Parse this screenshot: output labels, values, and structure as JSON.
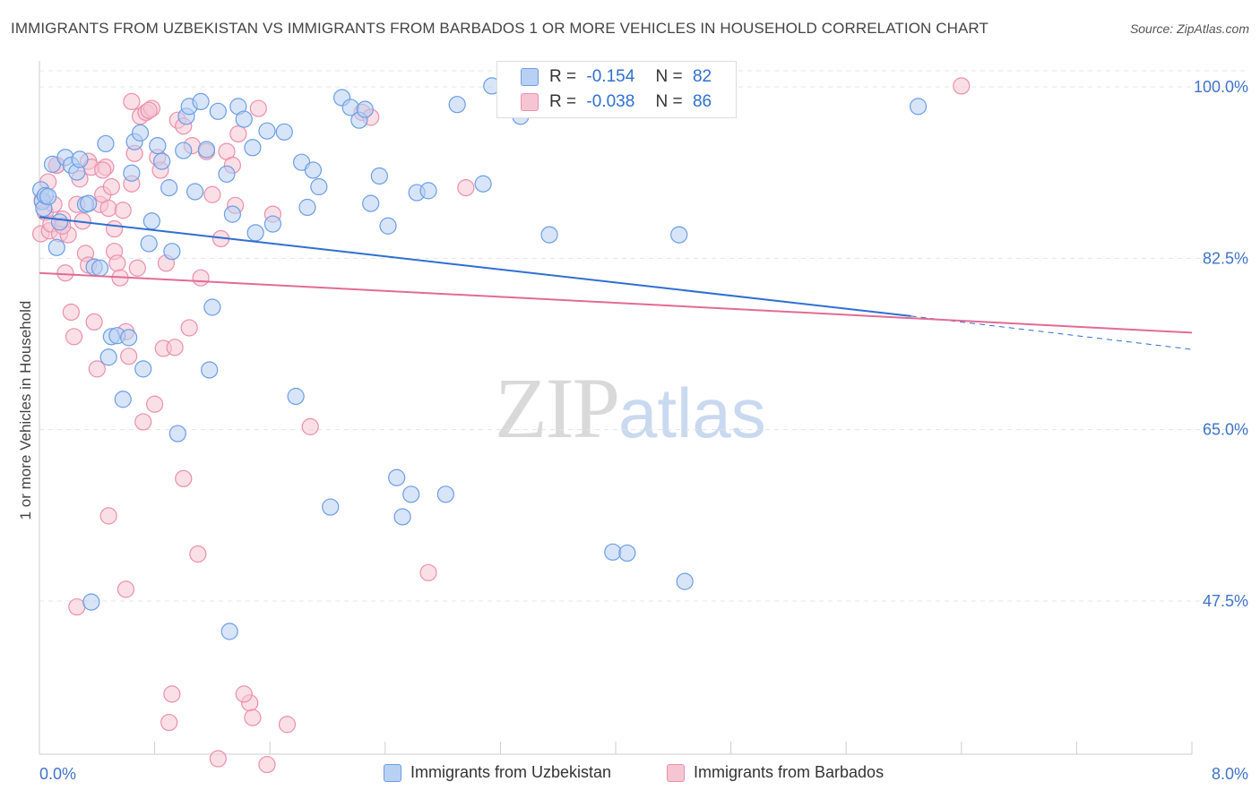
{
  "title": "IMMIGRANTS FROM UZBEKISTAN VS IMMIGRANTS FROM BARBADOS 1 OR MORE VEHICLES IN HOUSEHOLD CORRELATION CHART",
  "source": "Source: ZipAtlas.com",
  "watermark": {
    "zip": "ZIP",
    "atlas": "atlas"
  },
  "legend": {
    "r_label": "R =",
    "n_label": "N =",
    "uzbekistan": {
      "r": "-0.154",
      "n": "82"
    },
    "barbados": {
      "r": "-0.038",
      "n": "86"
    }
  },
  "colors": {
    "blue_fill": "#b8d0f2",
    "blue_stroke": "#6a9ee6",
    "blue_line": "#2f6fd1",
    "pink_fill": "#f6c5d4",
    "pink_stroke": "#ec8fab",
    "pink_line": "#e36b95",
    "tick_label": "#3f73c9"
  },
  "chart_data": {
    "type": "scatter",
    "title": "IMMIGRANTS FROM UZBEKISTAN VS IMMIGRANTS FROM BARBADOS 1 OR MORE VEHICLES IN HOUSEHOLD CORRELATION CHART",
    "xlabel": "",
    "ylabel": "1 or more Vehicles in Household",
    "xlim": [
      0,
      8
    ],
    "ylim": [
      31,
      102
    ],
    "x_tick_labels": [
      "0.0%",
      "8.0%"
    ],
    "y_ticks": [
      100,
      82.5,
      65,
      47.5
    ],
    "y_tick_labels": [
      "100.0%",
      "82.5%",
      "65.0%",
      "47.5%"
    ],
    "grid": true,
    "legend_position": "top-center",
    "series": [
      {
        "name": "Immigrants from Uzbekistan",
        "color": "#6a9ee6",
        "trend": {
          "x0": 0.0,
          "y0": 86.7,
          "x1": 6.05,
          "y1": 76.6,
          "dashed_to_x": 8.0,
          "dashed_to_y": 73.2
        },
        "points": [
          [
            0.01,
            89.5
          ],
          [
            0.02,
            88.3
          ],
          [
            0.03,
            87.6
          ],
          [
            0.04,
            88.9
          ],
          [
            0.06,
            88.8
          ],
          [
            0.09,
            92.1
          ],
          [
            0.12,
            83.6
          ],
          [
            0.14,
            86.2
          ],
          [
            0.18,
            92.8
          ],
          [
            0.22,
            92.0
          ],
          [
            0.26,
            91.3
          ],
          [
            0.28,
            92.6
          ],
          [
            0.32,
            88.0
          ],
          [
            0.34,
            88.1
          ],
          [
            0.38,
            81.6
          ],
          [
            0.42,
            81.5
          ],
          [
            0.46,
            94.2
          ],
          [
            0.48,
            72.4
          ],
          [
            0.5,
            74.5
          ],
          [
            0.54,
            74.6
          ],
          [
            0.58,
            68.1
          ],
          [
            0.62,
            74.4
          ],
          [
            0.64,
            91.2
          ],
          [
            0.66,
            94.4
          ],
          [
            0.7,
            95.3
          ],
          [
            0.72,
            71.2
          ],
          [
            0.76,
            84.0
          ],
          [
            0.78,
            86.3
          ],
          [
            0.82,
            94.0
          ],
          [
            0.85,
            92.4
          ],
          [
            0.9,
            89.7
          ],
          [
            0.92,
            83.2
          ],
          [
            0.96,
            64.6
          ],
          [
            1.0,
            93.5
          ],
          [
            1.02,
            97.0
          ],
          [
            1.04,
            98.0
          ],
          [
            1.08,
            89.3
          ],
          [
            1.12,
            98.5
          ],
          [
            1.16,
            93.6
          ],
          [
            1.18,
            71.1
          ],
          [
            1.2,
            77.5
          ],
          [
            1.24,
            97.5
          ],
          [
            1.3,
            91.1
          ],
          [
            1.34,
            87.0
          ],
          [
            1.38,
            98.0
          ],
          [
            1.42,
            96.7
          ],
          [
            1.48,
            93.8
          ],
          [
            1.5,
            85.1
          ],
          [
            1.58,
            95.5
          ],
          [
            1.62,
            86.0
          ],
          [
            1.7,
            95.4
          ],
          [
            1.78,
            68.4
          ],
          [
            1.82,
            92.3
          ],
          [
            1.86,
            87.7
          ],
          [
            1.9,
            91.5
          ],
          [
            1.94,
            89.8
          ],
          [
            2.02,
            57.1
          ],
          [
            2.1,
            98.9
          ],
          [
            2.16,
            97.9
          ],
          [
            2.22,
            96.6
          ],
          [
            2.26,
            97.7
          ],
          [
            2.3,
            88.1
          ],
          [
            2.36,
            90.9
          ],
          [
            2.42,
            85.8
          ],
          [
            2.48,
            60.1
          ],
          [
            2.52,
            56.1
          ],
          [
            2.58,
            58.4
          ],
          [
            2.62,
            89.2
          ],
          [
            2.7,
            89.4
          ],
          [
            2.82,
            58.4
          ],
          [
            2.9,
            98.2
          ],
          [
            3.08,
            90.1
          ],
          [
            3.14,
            100.1
          ],
          [
            3.3,
            100.1
          ],
          [
            3.34,
            97.0
          ],
          [
            3.54,
            84.9
          ],
          [
            3.98,
            52.5
          ],
          [
            4.08,
            52.4
          ],
          [
            4.44,
            84.9
          ],
          [
            4.48,
            49.5
          ],
          [
            6.1,
            98.0
          ],
          [
            0.36,
            47.4
          ],
          [
            1.32,
            44.4
          ]
        ]
      },
      {
        "name": "Immigrants from Barbados",
        "color": "#ec8fab",
        "trend": {
          "x0": 0.0,
          "y0": 81.0,
          "x1": 8.0,
          "y1": 74.9
        },
        "points": [
          [
            0.01,
            85.0
          ],
          [
            0.02,
            88.5
          ],
          [
            0.04,
            87.2
          ],
          [
            0.06,
            90.3
          ],
          [
            0.07,
            85.3
          ],
          [
            0.08,
            86.0
          ],
          [
            0.1,
            88.0
          ],
          [
            0.12,
            92.0
          ],
          [
            0.14,
            85.0
          ],
          [
            0.16,
            86.5
          ],
          [
            0.18,
            81.0
          ],
          [
            0.22,
            77.0
          ],
          [
            0.24,
            74.5
          ],
          [
            0.26,
            88.0
          ],
          [
            0.3,
            86.3
          ],
          [
            0.32,
            83.0
          ],
          [
            0.34,
            92.4
          ],
          [
            0.36,
            91.8
          ],
          [
            0.38,
            76.0
          ],
          [
            0.4,
            71.2
          ],
          [
            0.42,
            88.0
          ],
          [
            0.44,
            89.0
          ],
          [
            0.46,
            91.8
          ],
          [
            0.48,
            87.6
          ],
          [
            0.5,
            89.8
          ],
          [
            0.52,
            83.2
          ],
          [
            0.54,
            82.0
          ],
          [
            0.56,
            80.5
          ],
          [
            0.58,
            87.4
          ],
          [
            0.6,
            75.0
          ],
          [
            0.62,
            72.5
          ],
          [
            0.64,
            98.5
          ],
          [
            0.66,
            93.2
          ],
          [
            0.68,
            81.5
          ],
          [
            0.7,
            97.0
          ],
          [
            0.72,
            65.8
          ],
          [
            0.74,
            97.4
          ],
          [
            0.78,
            97.8
          ],
          [
            0.8,
            67.6
          ],
          [
            0.82,
            92.8
          ],
          [
            0.84,
            91.5
          ],
          [
            0.86,
            73.3
          ],
          [
            0.88,
            82.0
          ],
          [
            0.9,
            35.1
          ],
          [
            0.94,
            73.4
          ],
          [
            0.96,
            96.6
          ],
          [
            1.0,
            60.0
          ],
          [
            1.04,
            75.4
          ],
          [
            1.06,
            94.0
          ],
          [
            1.1,
            52.3
          ],
          [
            1.12,
            80.5
          ],
          [
            1.16,
            93.4
          ],
          [
            1.2,
            89.0
          ],
          [
            1.24,
            31.4
          ],
          [
            1.26,
            84.5
          ],
          [
            1.3,
            93.4
          ],
          [
            1.34,
            92.0
          ],
          [
            1.38,
            95.2
          ],
          [
            1.46,
            37.1
          ],
          [
            1.48,
            35.6
          ],
          [
            1.52,
            97.8
          ],
          [
            1.58,
            30.8
          ],
          [
            1.62,
            87.0
          ],
          [
            1.72,
            34.9
          ],
          [
            1.88,
            65.3
          ],
          [
            2.24,
            97.4
          ],
          [
            2.3,
            96.9
          ],
          [
            2.7,
            50.4
          ],
          [
            2.96,
            89.7
          ],
          [
            6.4,
            100.1
          ],
          [
            0.48,
            56.2
          ],
          [
            0.6,
            48.7
          ],
          [
            0.26,
            46.9
          ],
          [
            0.92,
            38.0
          ],
          [
            1.42,
            38.0
          ],
          [
            0.12,
            92.0
          ],
          [
            0.2,
            84.9
          ],
          [
            0.52,
            85.5
          ],
          [
            0.76,
            97.6
          ],
          [
            1.0,
            96.0
          ],
          [
            0.28,
            90.6
          ],
          [
            0.44,
            91.5
          ],
          [
            0.64,
            90.1
          ],
          [
            1.36,
            87.9
          ],
          [
            0.16,
            85.8
          ],
          [
            0.34,
            81.8
          ]
        ]
      }
    ]
  },
  "bottom_legend": {
    "uzbekistan": "Immigrants from Uzbekistan",
    "barbados": "Immigrants from Barbados"
  },
  "axis": {
    "y_label": "1 or more Vehicles in Household",
    "x_min_label": "0.0%",
    "x_max_label": "8.0%"
  }
}
